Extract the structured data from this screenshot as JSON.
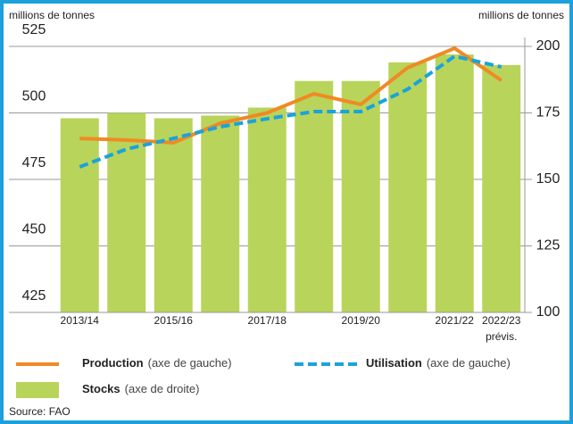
{
  "chart_data": {
    "type": "bar-line",
    "y_label": "millions de tonnes",
    "y2_label": "millions de tonnes",
    "categories": [
      "2013/14",
      null,
      "2015/16",
      null,
      "2017/18",
      null,
      "2019/20",
      null,
      "2021/22",
      "2022/23"
    ],
    "annotation": "prévis.",
    "ylim": [
      425,
      525
    ],
    "yticks": [
      425,
      450,
      475,
      500,
      525
    ],
    "y2lim": [
      100,
      200
    ],
    "y2ticks": [
      100,
      125,
      150,
      175,
      200
    ],
    "grid": true,
    "series": [
      {
        "name": "Production",
        "legend_note": "(axe de gauche)",
        "type": "line",
        "color": "#f08a24",
        "axis": "y",
        "values": [
          490.4,
          489.8,
          488.8,
          496.1,
          500,
          507.2,
          503.2,
          517,
          524.3,
          512.2
        ]
      },
      {
        "name": "Utilisation",
        "legend_note": "(axe de gauche)",
        "type": "dashed-line",
        "color": "#1aa3dc",
        "axis": "y",
        "values": [
          479.7,
          486.4,
          490.4,
          494.8,
          497.8,
          500.5,
          500.5,
          508.9,
          521.3,
          517.3
        ]
      },
      {
        "name": "Stocks",
        "legend_note": "(axe de droite)",
        "type": "bar",
        "color": "#b9d45a",
        "axis": "y2",
        "values": [
          173,
          175,
          173,
          174,
          177,
          187,
          187,
          194,
          197,
          193
        ]
      }
    ],
    "source": "Source: FAO"
  }
}
